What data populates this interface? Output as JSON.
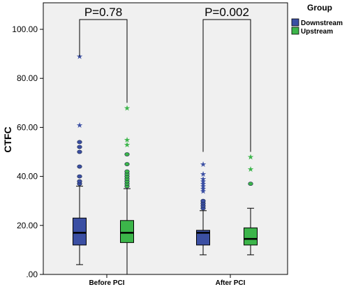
{
  "chart_data": {
    "type": "boxplot",
    "title": "",
    "xlabel": "",
    "ylabel": "CTFC",
    "ylim": [
      0,
      110
    ],
    "yticks": [
      0,
      20,
      40,
      60,
      80,
      100
    ],
    "ytick_labels": [
      ".00",
      "20.00",
      "40.00",
      "60.00",
      "80.00",
      "100.00"
    ],
    "categories": [
      "Before PCI",
      "After PCI"
    ],
    "legend": {
      "title": "Group",
      "placement": "top-right"
    },
    "series": [
      {
        "name": "Downstream",
        "color": "#3b4fa3",
        "boxes": [
          {
            "q1": 12,
            "median": 17,
            "q3": 23,
            "whisker_low": 4,
            "whisker_high": 36,
            "outliers": [
              37,
              38,
              40,
              44,
              50,
              52,
              54
            ],
            "extremes": [
              61,
              89
            ]
          },
          {
            "q1": 12,
            "median": 17,
            "q3": 18,
            "whisker_low": 8,
            "whisker_high": 26,
            "outliers": [
              27,
              28,
              29,
              30
            ],
            "extremes": [
              34,
              35,
              36,
              37,
              38,
              39,
              41,
              45
            ]
          }
        ]
      },
      {
        "name": "Upstream",
        "color": "#3cb54a",
        "boxes": [
          {
            "q1": 13,
            "median": 17,
            "q3": 22,
            "whisker_low": 0,
            "whisker_high": 35,
            "outliers": [
              36,
              37,
              38,
              39,
              40,
              41,
              42,
              45,
              49
            ],
            "extremes": [
              53,
              55,
              68
            ]
          },
          {
            "q1": 12,
            "median": 14.5,
            "q3": 19,
            "whisker_low": 8,
            "whisker_high": 27,
            "outliers": [
              37
            ],
            "extremes": [
              43,
              48
            ]
          }
        ]
      }
    ],
    "annotations": [
      {
        "text": "P=0.78",
        "category": "Before PCI",
        "left_top": 89,
        "right_top": 70
      },
      {
        "text": "P=0.002",
        "category": "After PCI",
        "left_top": 50,
        "right_top": 50
      }
    ]
  }
}
